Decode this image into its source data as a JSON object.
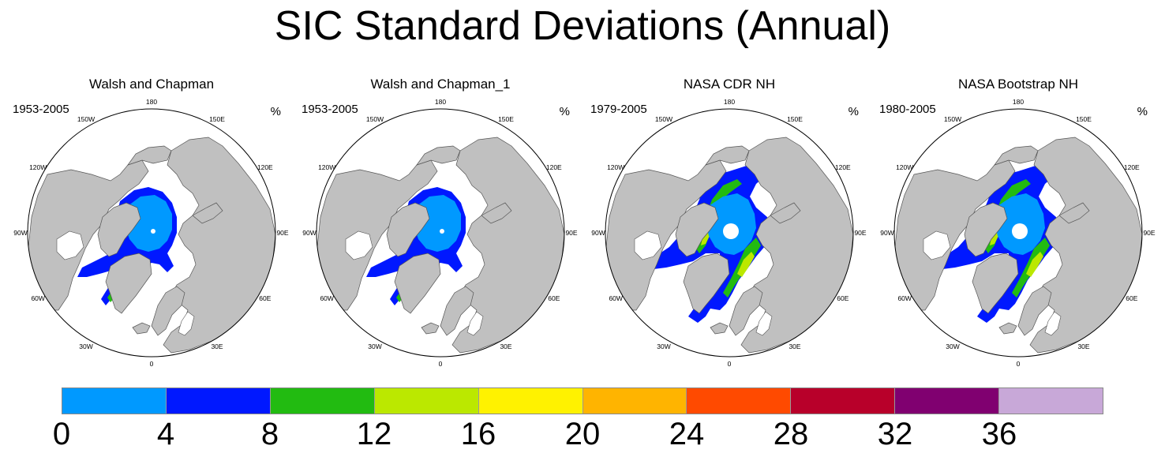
{
  "title": "SIC Standard Deviations (Annual)",
  "unit": "%",
  "longitude_labels": {
    "lon_180": "180",
    "lon_150e": "150E",
    "lon_120e": "120E",
    "lon_90e": "90E",
    "lon_60e": "60E",
    "lon_30e": "30E",
    "lon_0": "0",
    "lon_30w": "30W",
    "lon_60w": "60W",
    "lon_90w": "90W",
    "lon_120w": "120W",
    "lon_150w": "150W"
  },
  "panels": [
    {
      "name": "Walsh and Chapman",
      "period": "1953-2005",
      "ice_extent": "narrow",
      "pole_hole": false
    },
    {
      "name": "Walsh and Chapman_1",
      "period": "1953-2005",
      "ice_extent": "narrow",
      "pole_hole": false
    },
    {
      "name": "NASA CDR NH",
      "period": "1979-2005",
      "ice_extent": "wide",
      "pole_hole": true
    },
    {
      "name": "NASA Bootstrap NH",
      "period": "1980-2005",
      "ice_extent": "wide",
      "pole_hole": true
    }
  ],
  "colorbar": {
    "ticks": [
      "0",
      "4",
      "8",
      "12",
      "16",
      "20",
      "24",
      "28",
      "32",
      "36"
    ],
    "colors": [
      "#0099ff",
      "#0018ff",
      "#22bb11",
      "#bbe800",
      "#fff200",
      "#ffb400",
      "#ff4a00",
      "#b8002a",
      "#800070",
      "#c8a8d8"
    ]
  },
  "colors": {
    "ocean": "#ffffff",
    "land": "#c0c0c0",
    "sd_0_4": "#0099ff",
    "sd_4_8": "#0018ff",
    "sd_8_12": "#22bb11",
    "sd_12_16": "#bbe800"
  }
}
